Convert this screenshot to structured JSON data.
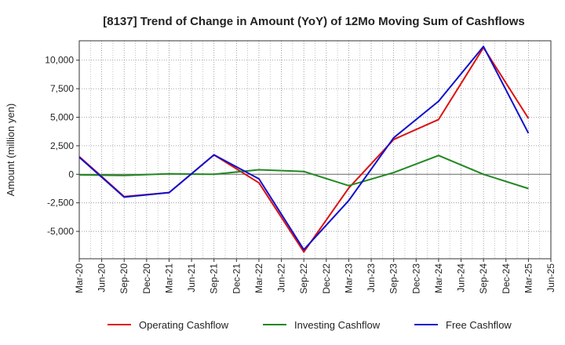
{
  "chart_data": {
    "type": "line",
    "title": "[8137]  Trend of Change in Amount (YoY) of 12Mo Moving Sum of Cashflows",
    "xlabel": "",
    "ylabel": "Amount (million yen)",
    "categories": [
      "Mar-20",
      "Jun-20",
      "Sep-20",
      "Dec-20",
      "Mar-21",
      "Jun-21",
      "Sep-21",
      "Dec-21",
      "Mar-22",
      "Jun-22",
      "Sep-22",
      "Dec-22",
      "Mar-23",
      "Jun-23",
      "Sep-23",
      "Dec-23",
      "Mar-24",
      "Jun-24",
      "Sep-24",
      "Dec-24",
      "Mar-25",
      "Jun-25"
    ],
    "ylim": [
      -7400,
      11700
    ],
    "yticks": [
      -5000,
      -2500,
      0,
      2500,
      5000,
      7500,
      10000
    ],
    "ytick_labels": [
      "-5,000",
      "-2,500",
      "0",
      "2,500",
      "5,000",
      "7,500",
      "10,000"
    ],
    "grid": true,
    "legend_position": "bottom",
    "series": [
      {
        "name": "Operating Cashflow",
        "color": "#dd1111",
        "values": [
          1550,
          null,
          -1950,
          null,
          -1600,
          null,
          1700,
          null,
          -750,
          null,
          -6800,
          null,
          -1200,
          null,
          3050,
          null,
          4800,
          null,
          11100,
          null,
          4900,
          null
        ]
      },
      {
        "name": "Investing Cashflow",
        "color": "#228822",
        "values": [
          -50,
          null,
          -100,
          null,
          50,
          null,
          0,
          null,
          400,
          null,
          250,
          null,
          -1000,
          null,
          150,
          null,
          1650,
          null,
          0,
          null,
          -1250,
          null
        ]
      },
      {
        "name": "Free Cashflow",
        "color": "#1111cc",
        "values": [
          1500,
          null,
          -2000,
          null,
          -1600,
          null,
          1700,
          null,
          -400,
          null,
          -6600,
          null,
          -2300,
          null,
          3200,
          null,
          6400,
          null,
          11200,
          null,
          3600,
          null
        ]
      }
    ]
  }
}
